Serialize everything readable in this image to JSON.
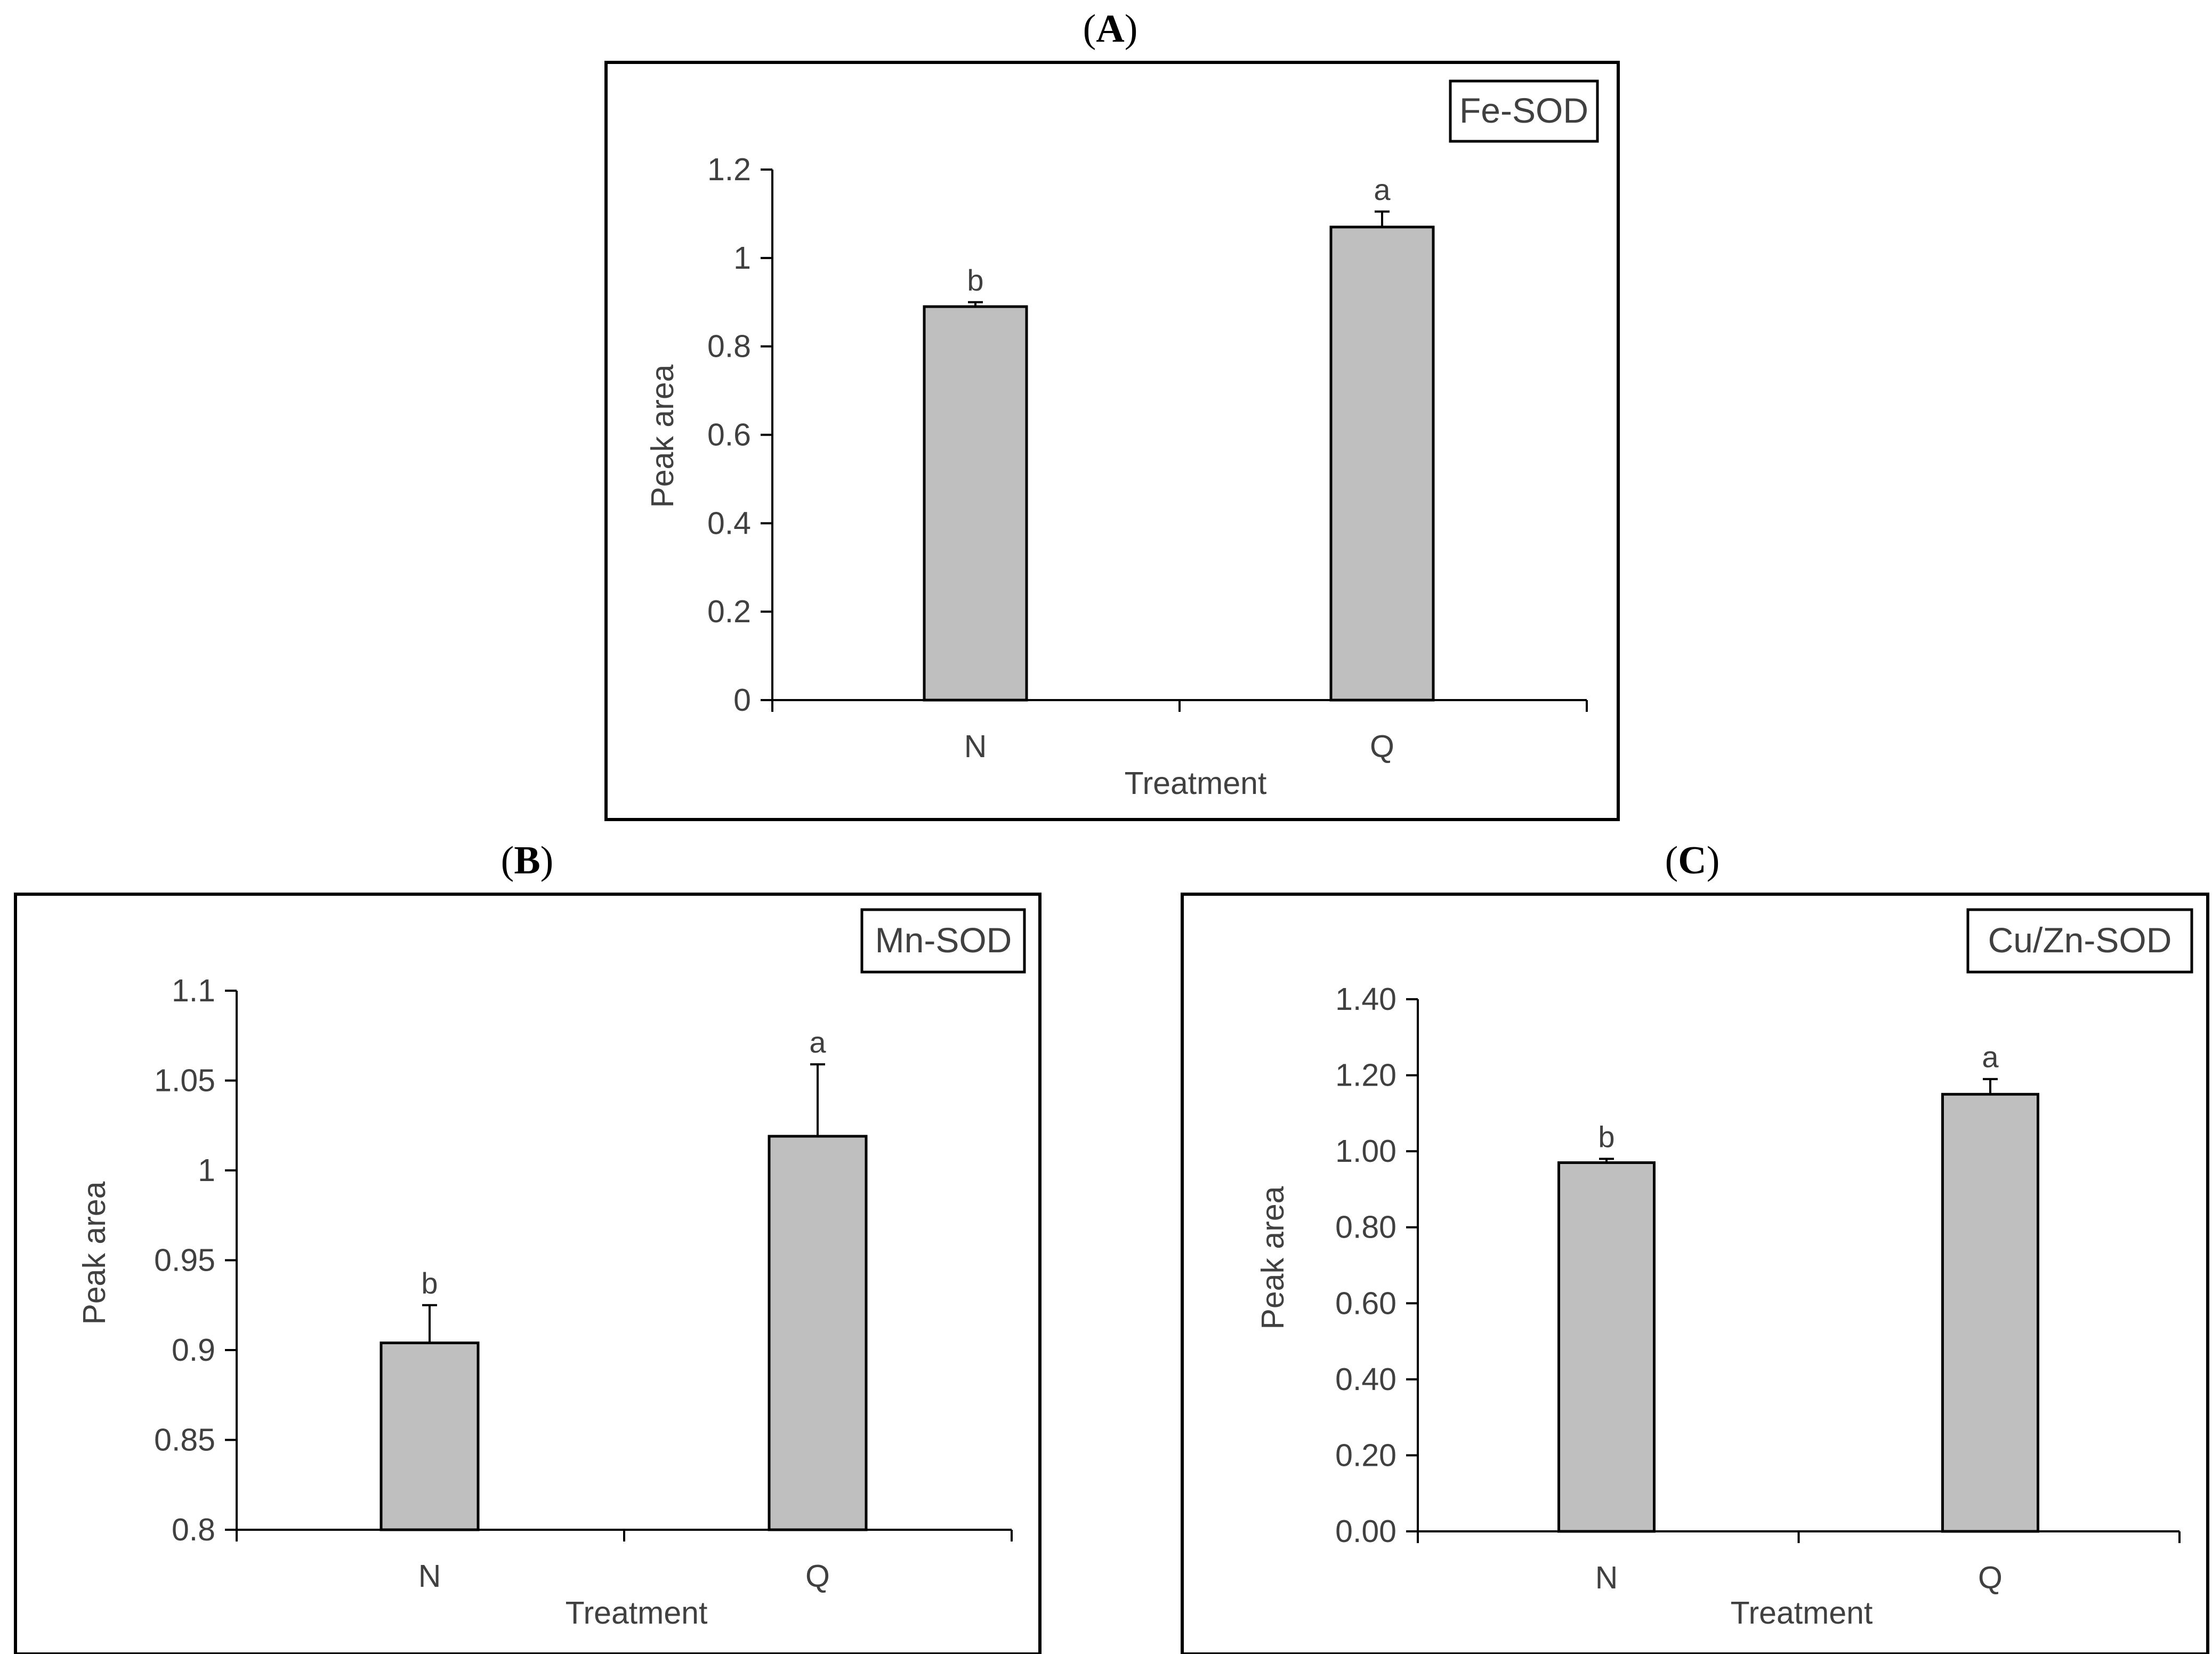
{
  "colors": {
    "bar_fill": "#bfbfbf",
    "bar_stroke": "#000000",
    "axis": "#000000",
    "text": "#404040"
  },
  "chart_data": [
    {
      "type": "bar",
      "panel_label": "A",
      "title": "Fe-SOD",
      "xlabel": "Treatment",
      "ylabel": "Peak area",
      "categories": [
        "N",
        "Q"
      ],
      "values": [
        0.89,
        1.07
      ],
      "errors": [
        0.01,
        0.035
      ],
      "significance": [
        "b",
        "a"
      ],
      "ylim": [
        0,
        1.2
      ],
      "yticks": [
        "0",
        "0.2",
        "0.4",
        "0.6",
        "0.8",
        "1",
        "1.2"
      ],
      "grid": false
    },
    {
      "type": "bar",
      "panel_label": "B",
      "title": "Mn-SOD",
      "xlabel": "Treatment",
      "ylabel": "Peak area",
      "categories": [
        "N",
        "Q"
      ],
      "values": [
        0.904,
        1.019
      ],
      "errors": [
        0.021,
        0.04
      ],
      "significance": [
        "b",
        "a"
      ],
      "ylim": [
        0.8,
        1.1
      ],
      "yticks": [
        "0.8",
        "0.85",
        "0.9",
        "0.95",
        "1",
        "1.05",
        "1.1"
      ],
      "grid": false
    },
    {
      "type": "bar",
      "panel_label": "C",
      "title": "Cu/Zn-SOD",
      "xlabel": "Treatment",
      "ylabel": "Peak area",
      "categories": [
        "N",
        "Q"
      ],
      "values": [
        0.97,
        1.15
      ],
      "errors": [
        0.01,
        0.04
      ],
      "significance": [
        "b",
        "a"
      ],
      "ylim": [
        0,
        1.4
      ],
      "yticks": [
        "0.00",
        "0.20",
        "0.40",
        "0.60",
        "0.80",
        "1.00",
        "1.20",
        "1.40"
      ],
      "grid": false
    }
  ]
}
